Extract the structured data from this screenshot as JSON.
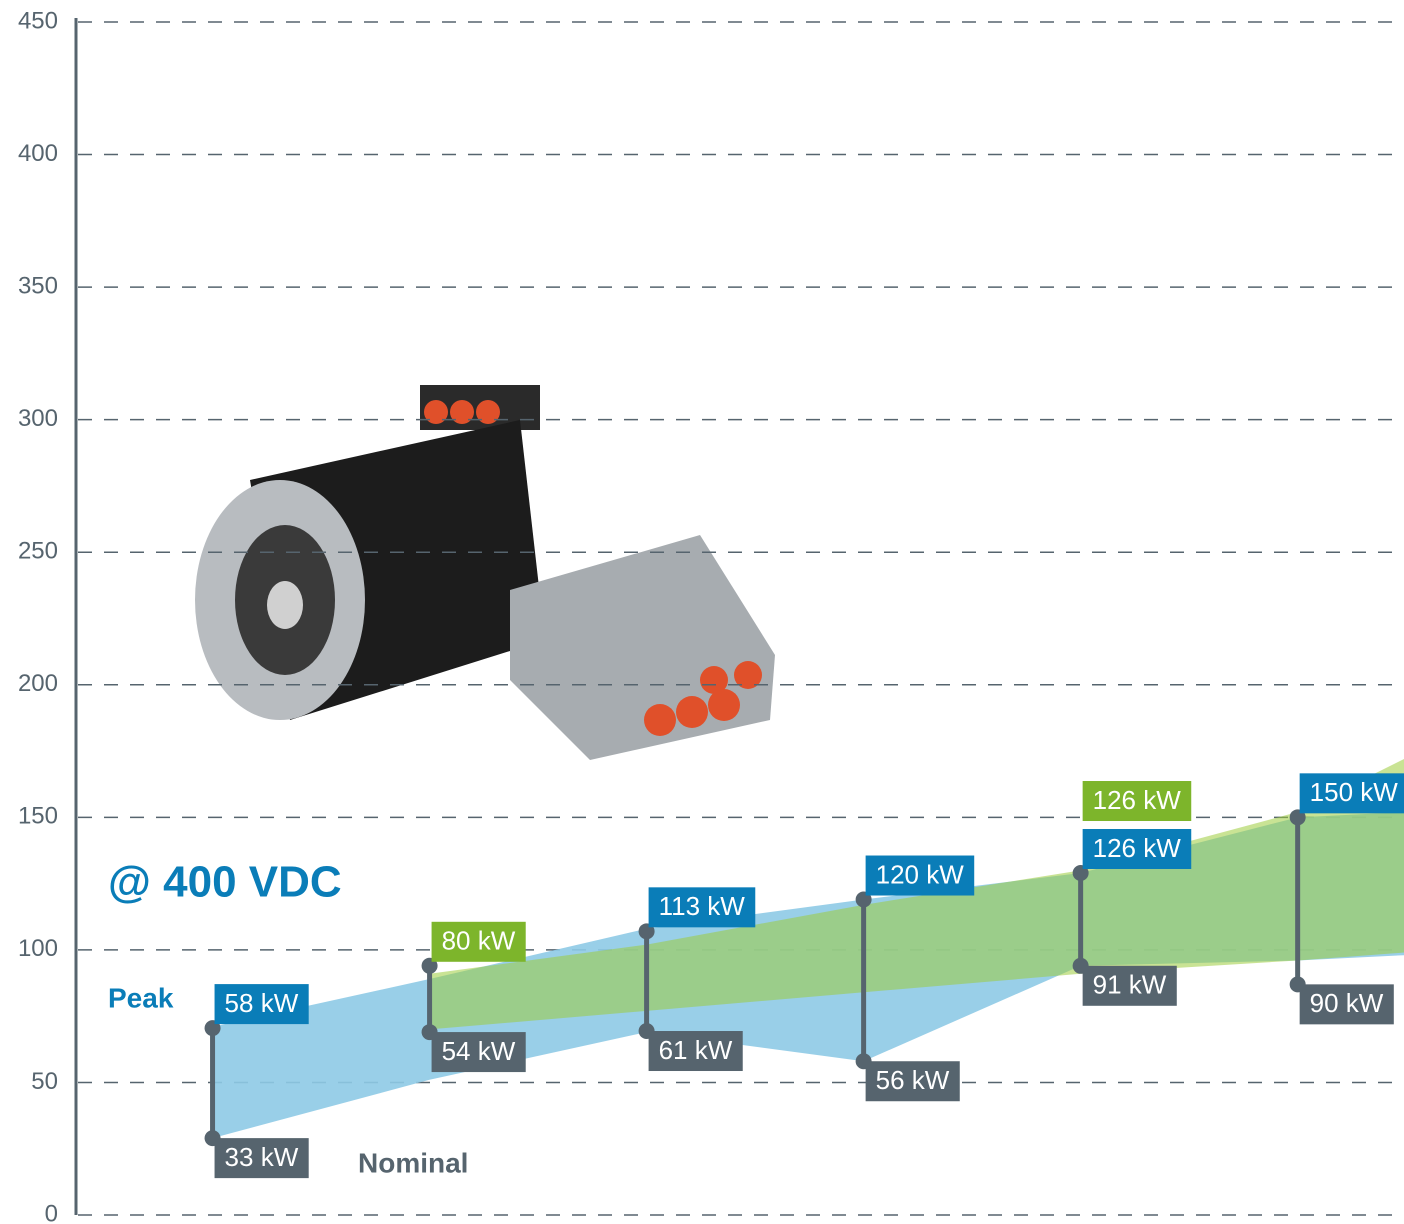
{
  "chart_data": {
    "type": "range-area",
    "title": "@ 400 VDC",
    "annotations": [
      {
        "text": "Peak",
        "color": "#0a7db8"
      },
      {
        "text": "Nominal",
        "color": "#56646e"
      }
    ],
    "ylim": [
      0,
      450
    ],
    "yticks": [
      0,
      50,
      100,
      150,
      200,
      250,
      300,
      350,
      400,
      450
    ],
    "grid": true,
    "xlim": [
      -0.62,
      5.49
    ],
    "x": [
      0,
      1,
      2,
      3,
      4,
      5,
      5.49
    ],
    "series": [
      {
        "color": "#8ecae6",
        "upper": [
          71,
          89,
          108,
          119,
          129,
          150,
          152
        ],
        "lower": [
          29,
          51,
          69,
          58,
          94,
          96,
          98
        ]
      },
      {
        "color": "#9ccc3c",
        "upper": [
          null,
          91,
          102,
          117,
          130,
          152,
          172
        ],
        "lower": [
          null,
          70,
          77,
          84,
          91,
          96,
          99
        ]
      }
    ],
    "markers": {
      "x": [
        0,
        1,
        2,
        3,
        4,
        5
      ],
      "top": [
        70.5,
        94,
        107,
        119,
        129,
        150
      ],
      "bottom": [
        29,
        69,
        69.4,
        58,
        94,
        87
      ],
      "top_labels": [
        [
          {
            "text": "58 kW",
            "color": "#0a7db8"
          }
        ],
        [
          {
            "text": "80 kW",
            "color": "#7db52b"
          }
        ],
        [
          {
            "text": "113 kW",
            "color": "#0a7db8"
          }
        ],
        [
          {
            "text": "120 kW",
            "color": "#0a7db8"
          }
        ],
        [
          {
            "text": "126 kW",
            "color": "#0a7db8"
          },
          {
            "text": "126 kW",
            "color": "#7db52b"
          }
        ],
        [
          {
            "text": "150 kW",
            "color": "#0a7db8"
          }
        ]
      ],
      "bottom_labels": [
        "33 kW",
        "54 kW",
        "61 kW",
        "56 kW",
        "91 kW",
        "90 kW"
      ],
      "color": "#56646e"
    }
  }
}
